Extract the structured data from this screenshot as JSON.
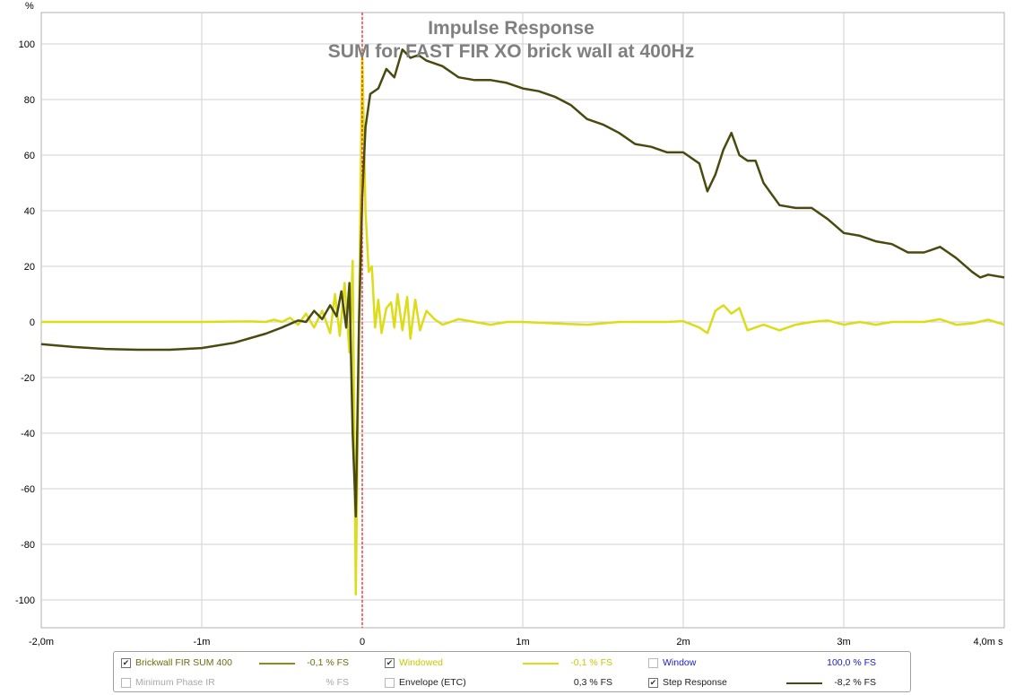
{
  "chart_data": {
    "type": "line",
    "title": "Impulse Response",
    "subtitle": "SUM for FAST FIR XO brick wall at 400Hz",
    "y_unit": "%",
    "x_unit": "s",
    "xlim": [
      -0.002,
      0.004
    ],
    "ylim": [
      -110,
      110
    ],
    "grid": true,
    "x_ticks": [
      {
        "value": -0.002,
        "label": "-2,0m"
      },
      {
        "value": -0.001,
        "label": "-1m"
      },
      {
        "value": 0,
        "label": "0"
      },
      {
        "value": 0.001,
        "label": "1m"
      },
      {
        "value": 0.002,
        "label": "2m"
      },
      {
        "value": 0.003,
        "label": "3m"
      },
      {
        "value": 0.004,
        "label": "4,0m s"
      }
    ],
    "y_ticks": [
      {
        "value": 100,
        "label": "100"
      },
      {
        "value": 80,
        "label": "80"
      },
      {
        "value": 60,
        "label": "60"
      },
      {
        "value": 40,
        "label": "40"
      },
      {
        "value": 20,
        "label": "20"
      },
      {
        "value": 0,
        "label": "0"
      },
      {
        "value": -20,
        "label": "-20"
      },
      {
        "value": -40,
        "label": "-40"
      },
      {
        "value": -60,
        "label": "-60"
      },
      {
        "value": -80,
        "label": "-80"
      },
      {
        "value": -100,
        "label": "-100"
      }
    ],
    "cursor_x": 0,
    "series": [
      {
        "name": "Step Response",
        "color": "#4a4a10",
        "x": [
          -0.002,
          -0.0018,
          -0.0016,
          -0.0014,
          -0.0012,
          -0.001,
          -0.0008,
          -0.0006,
          -0.0005,
          -0.0004,
          -0.00035,
          -0.0003,
          -0.00025,
          -0.0002,
          -0.00016,
          -0.00013,
          -0.0001,
          -8e-05,
          -6e-05,
          -4e-05,
          -2e-05,
          0,
          2e-05,
          5e-05,
          0.0001,
          0.00015,
          0.0002,
          0.00025,
          0.0003,
          0.00035,
          0.0004,
          0.0005,
          0.0006,
          0.0007,
          0.0008,
          0.0009,
          0.001,
          0.0011,
          0.0012,
          0.0013,
          0.0014,
          0.0015,
          0.0016,
          0.0017,
          0.0018,
          0.0019,
          0.002,
          0.0021,
          0.00215,
          0.0022,
          0.00225,
          0.0023,
          0.00235,
          0.0024,
          0.00245,
          0.0025,
          0.0026,
          0.0027,
          0.0028,
          0.0029,
          0.003,
          0.0031,
          0.0032,
          0.0033,
          0.0034,
          0.0035,
          0.00355,
          0.0036,
          0.00365,
          0.0037,
          0.0038,
          0.00385,
          0.0039,
          0.004
        ],
        "y": [
          -8,
          -9,
          -9.7,
          -10,
          -10,
          -9.4,
          -7.5,
          -4.2,
          -2,
          0.5,
          0,
          4,
          1,
          6,
          2,
          11,
          -2,
          14,
          -40,
          -70,
          0,
          45,
          70,
          82,
          84,
          91,
          88,
          98,
          95,
          96,
          94,
          92,
          88,
          87,
          87,
          86,
          84,
          83,
          81,
          78,
          73,
          71,
          68,
          64,
          63,
          61,
          61,
          57,
          47,
          53,
          62,
          68,
          60,
          58,
          58,
          50,
          42,
          41,
          41,
          37,
          32,
          31,
          29,
          28,
          25,
          25,
          26,
          27,
          25,
          23,
          18,
          16,
          17,
          16
        ]
      },
      {
        "name": "Windowed",
        "color": "#dcdc18",
        "x": [
          -0.002,
          -0.0015,
          -0.001,
          -0.0007,
          -0.0006,
          -0.00055,
          -0.0005,
          -0.00045,
          -0.0004,
          -0.00035,
          -0.0003,
          -0.00025,
          -0.0002,
          -0.00017,
          -0.00014,
          -0.00011,
          -8e-05,
          -6e-05,
          -4e-05,
          -2e-05,
          0,
          2e-05,
          4e-05,
          6e-05,
          8e-05,
          0.0001,
          0.00012,
          0.00015,
          0.00018,
          0.0002,
          0.00022,
          0.00025,
          0.00028,
          0.0003,
          0.00033,
          0.00036,
          0.0004,
          0.00045,
          0.0005,
          0.0006,
          0.0007,
          0.0008,
          0.0009,
          0.001,
          0.0012,
          0.0014,
          0.0016,
          0.0018,
          0.0019,
          0.002,
          0.0021,
          0.00215,
          0.0022,
          0.00225,
          0.0023,
          0.00235,
          0.0024,
          0.0025,
          0.0026,
          0.0027,
          0.0028,
          0.0029,
          0.003,
          0.0031,
          0.0032,
          0.0033,
          0.0034,
          0.0035,
          0.0036,
          0.0037,
          0.0038,
          0.0039,
          0.004
        ],
        "y": [
          0,
          0,
          0,
          0.2,
          0,
          0.8,
          0,
          1.5,
          -1,
          3,
          -2,
          4,
          -4,
          10,
          -5,
          14,
          -11,
          22,
          -98,
          0,
          97,
          40,
          18,
          20,
          -2,
          8,
          -4,
          5,
          7,
          -2,
          10,
          -3,
          9,
          -6,
          8,
          -3,
          4,
          1,
          -1,
          1,
          0,
          -1,
          0,
          0,
          -0.5,
          -1,
          0,
          0,
          0,
          0.3,
          -2,
          -4,
          4,
          6,
          3,
          5,
          -3,
          -1,
          -3,
          -1,
          0,
          0.5,
          -1,
          0,
          -1,
          0,
          0,
          0,
          1,
          -1,
          -0.5,
          0.8,
          -1
        ]
      }
    ]
  },
  "legend": {
    "row1": [
      {
        "label": "Brickwall FIR SUM 400",
        "checked": true,
        "value": "-0,1 % FS",
        "label_color": "#6b6b10",
        "value_color": "#6b6b10",
        "line_color": "#8c8c1e"
      },
      {
        "label": "Windowed",
        "checked": true,
        "value": "-0,1 % FS",
        "label_color": "#c8c800",
        "value_color": "#c8c800",
        "line_color": "#dcdc18"
      },
      {
        "label": "Window",
        "checked": false,
        "value": "100,0 % FS",
        "label_color": "#1a1ac8",
        "value_color": "#1a1ac8",
        "line_color": ""
      }
    ],
    "row2": [
      {
        "label": "Minimum Phase IR",
        "checked": false,
        "value": "% FS",
        "label_color": "#a8a8a8",
        "value_color": "#a8a8a8",
        "line_color": ""
      },
      {
        "label": "Envelope (ETC)",
        "checked": false,
        "value": "0,3 % FS",
        "label_color": "#202020",
        "value_color": "#202020",
        "line_color": ""
      },
      {
        "label": "Step Response",
        "checked": true,
        "value": "-8,2 % FS",
        "label_color": "#202020",
        "value_color": "#202020",
        "line_color": "#4a4a10"
      }
    ]
  }
}
